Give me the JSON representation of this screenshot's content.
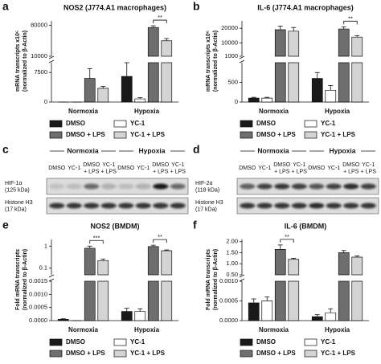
{
  "chart_data": [
    {
      "type": "bar",
      "panel": "a",
      "title": "NOS2 (J774.A1 macrophages)",
      "ylabel": [
        "mRNA transcripts x10⁶",
        "(normalized to β-Actin)"
      ],
      "categories": [
        "Normoxia",
        "Hypoxia"
      ],
      "series": [
        {
          "name": "DMSO",
          "color": "#1a1a1a",
          "values": [
            0,
            6500
          ],
          "errors": [
            0,
            3500
          ]
        },
        {
          "name": "YC-1",
          "color": "#ffffff",
          "values": [
            0,
            800
          ],
          "errors": [
            0,
            300
          ]
        },
        {
          "name": "DMSO + LPS",
          "color": "#6e6e6e",
          "values": [
            6000,
            75000
          ],
          "errors": [
            2500,
            4000
          ]
        },
        {
          "name": "YC-1 + LPS",
          "color": "#d4d4d4",
          "values": [
            3500,
            45000
          ],
          "errors": [
            500,
            5000
          ]
        }
      ],
      "segments": [
        {
          "ylim": [
            0,
            10000
          ],
          "yticks": [
            0,
            7500
          ]
        },
        {
          "ylim": [
            10000,
            90000
          ],
          "yticks": [
            10000,
            80000
          ]
        }
      ],
      "annotations": [
        {
          "text": "**",
          "category": "Hypoxia"
        }
      ]
    },
    {
      "type": "bar",
      "panel": "b",
      "title": "IL-6 (J774.A1 macrophages)",
      "ylabel": [
        "mRNA transcripts x10⁶",
        "(normalized to β-Actin)"
      ],
      "categories": [
        "Normoxia",
        "Hypoxia"
      ],
      "series": [
        {
          "name": "DMSO",
          "color": "#1a1a1a",
          "values": [
            100,
            600
          ],
          "errors": [
            20,
            150
          ]
        },
        {
          "name": "YC-1",
          "color": "#ffffff",
          "values": [
            100,
            300
          ],
          "errors": [
            20,
            120
          ]
        },
        {
          "name": "DMSO + LPS",
          "color": "#6e6e6e",
          "values": [
            19000,
            19500
          ],
          "errors": [
            2500,
            1500
          ]
        },
        {
          "name": "YC-1 + LPS",
          "color": "#d4d4d4",
          "values": [
            18000,
            14000
          ],
          "errors": [
            2500,
            1000
          ]
        }
      ],
      "segments": [
        {
          "ylim": [
            0,
            1000
          ],
          "yticks": [
            0,
            500
          ]
        },
        {
          "ylim": [
            1000,
            25000
          ],
          "yticks": [
            1000,
            10000,
            20000
          ]
        }
      ],
      "annotations": [
        {
          "text": "**",
          "category": "Hypoxia"
        }
      ]
    },
    {
      "type": "bar",
      "panel": "e",
      "title": "NOS2 (BMDM)",
      "ylabel": [
        "Fold mRNA transcripts",
        "(normalized to β-Actin)"
      ],
      "categories": [
        "Normoxia",
        "Hypoxia"
      ],
      "series": [
        {
          "name": "DMSO",
          "color": "#1a1a1a",
          "values": [
            5e-05,
            0.00035
          ],
          "errors": [
            2e-05,
            0.00012
          ]
        },
        {
          "name": "YC-1",
          "color": "#ffffff",
          "values": [
            0,
            0.00035
          ],
          "errors": [
            0,
            0.0001
          ]
        },
        {
          "name": "DMSO + LPS",
          "color": "#6e6e6e",
          "values": [
            0.8,
            0.95
          ],
          "errors": [
            0.2,
            0.15
          ]
        },
        {
          "name": "YC-1 + LPS",
          "color": "#d4d4d4",
          "values": [
            0.22,
            0.62
          ],
          "errors": [
            0.04,
            0.05
          ]
        }
      ],
      "segments": [
        {
          "ylim": [
            0,
            0.0015
          ],
          "yticks": [
            {
              "value": 0,
              "label": "0.0000"
            },
            {
              "value": 0.0005,
              "label": "0.0005"
            },
            {
              "value": 0.001,
              "label": "0.0010"
            },
            {
              "value": 0.0015,
              "label": "0.0015"
            }
          ]
        },
        {
          "ylim": [
            0.05,
            2
          ],
          "log": true,
          "yticks": [
            0.1,
            1
          ]
        }
      ],
      "annotations": [
        {
          "text": "***",
          "category": "Normoxia"
        },
        {
          "text": "**",
          "category": "Hypoxia"
        }
      ]
    },
    {
      "type": "bar",
      "panel": "f",
      "title": "IL-6 (BMDM)",
      "ylabel": [
        "Fold mRNA transcripts",
        "(normalized to β-Actin)"
      ],
      "categories": [
        "Normoxia",
        "Hypoxia"
      ],
      "series": [
        {
          "name": "DMSO",
          "color": "#1a1a1a",
          "values": [
            0.00045,
            0.0001
          ],
          "errors": [
            0.0001,
            5e-05
          ]
        },
        {
          "name": "YC-1",
          "color": "#ffffff",
          "values": [
            0.0005,
            0.0002
          ],
          "errors": [
            0.0001,
            0.0001
          ]
        },
        {
          "name": "DMSO + LPS",
          "color": "#6e6e6e",
          "values": [
            1.65,
            1.5
          ],
          "errors": [
            0.2,
            0.1
          ]
        },
        {
          "name": "YC-1 + LPS",
          "color": "#d4d4d4",
          "values": [
            1.2,
            1.3
          ],
          "errors": [
            0.05,
            0.06
          ]
        }
      ],
      "segments": [
        {
          "ylim": [
            0,
            0.001
          ],
          "yticks": [
            {
              "value": 0,
              "label": "0.0000"
            },
            {
              "value": 0.0005,
              "label": "0.0005"
            },
            {
              "value": 0.001,
              "label": "0.0010"
            }
          ]
        },
        {
          "ylim": [
            0.5,
            2.1
          ],
          "yticks": [
            {
              "value": 0.5,
              "label": "0.50"
            },
            {
              "value": 1,
              "label": "1.00"
            },
            {
              "value": 1.5,
              "label": "1.50"
            },
            {
              "value": 2,
              "label": "2.00"
            }
          ]
        }
      ],
      "annotations": [
        {
          "text": "**",
          "category": "Normoxia"
        }
      ]
    }
  ],
  "blots": [
    {
      "panel": "c",
      "groups": [
        "Normoxia",
        "Hypoxia"
      ],
      "lanes": [
        [
          "DMSO"
        ],
        [
          "YC-1"
        ],
        [
          "DMSO",
          "+ LPS"
        ],
        [
          "YC-1",
          "+ LPS"
        ],
        [
          "DMSO"
        ],
        [
          "YC-1"
        ],
        [
          "DMSO",
          "+ LPS"
        ],
        [
          "YC-1",
          "+ LPS"
        ]
      ],
      "rows": [
        [
          "HIF-1α",
          "(125 kDa)"
        ],
        [
          "Histone H3",
          "(17 kDa)"
        ]
      ]
    },
    {
      "panel": "d",
      "groups": [
        "Normoxia",
        "Hypoxia"
      ],
      "lanes": [
        [
          "DMSO"
        ],
        [
          "YC-1"
        ],
        [
          "DMSO",
          "+ LPS"
        ],
        [
          "YC-1",
          "+ LPS"
        ],
        [
          "DMSO"
        ],
        [
          "YC-1"
        ],
        [
          "DMSO",
          "+ LPS"
        ],
        [
          "YC-1",
          "+ LPS"
        ]
      ],
      "rows": [
        [
          "HIF-2α",
          "(118 kDa)"
        ],
        [
          "Histone H3",
          "(17 kDa)"
        ]
      ]
    }
  ]
}
